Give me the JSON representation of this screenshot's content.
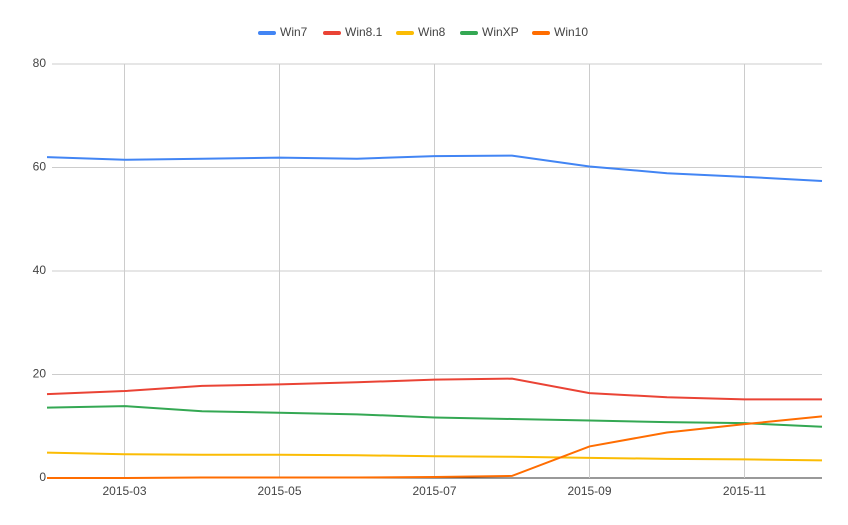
{
  "chart_data": {
    "type": "line",
    "categories": [
      null,
      "2015-03",
      null,
      "2015-05",
      null,
      "2015-07",
      null,
      "2015-09",
      null,
      "2015-11",
      null
    ],
    "series": [
      {
        "name": "Win7",
        "color": "#4285f4",
        "values": [
          62.0,
          61.5,
          61.7,
          61.9,
          61.7,
          62.2,
          62.3,
          60.2,
          58.9,
          58.2,
          57.4
        ]
      },
      {
        "name": "Win8.1",
        "color": "#ea4335",
        "values": [
          16.2,
          16.8,
          17.8,
          18.1,
          18.5,
          19.0,
          19.2,
          16.4,
          15.6,
          15.2,
          15.2
        ]
      },
      {
        "name": "Win8",
        "color": "#fbbc04",
        "values": [
          4.9,
          4.6,
          4.5,
          4.5,
          4.4,
          4.2,
          4.1,
          3.9,
          3.7,
          3.6,
          3.4
        ]
      },
      {
        "name": "WinXP",
        "color": "#34a853",
        "values": [
          13.6,
          13.9,
          12.9,
          12.6,
          12.3,
          11.7,
          11.4,
          11.1,
          10.8,
          10.6,
          9.9
        ]
      },
      {
        "name": "Win10",
        "color": "#ff6d01",
        "values": [
          0,
          0,
          0.1,
          0.1,
          0.1,
          0.2,
          0.4,
          6.1,
          8.8,
          10.4,
          11.9
        ]
      }
    ],
    "ylim": [
      0,
      80
    ],
    "yticks": [
      0,
      20,
      40,
      60,
      80
    ],
    "grid": true,
    "legend": "top"
  }
}
